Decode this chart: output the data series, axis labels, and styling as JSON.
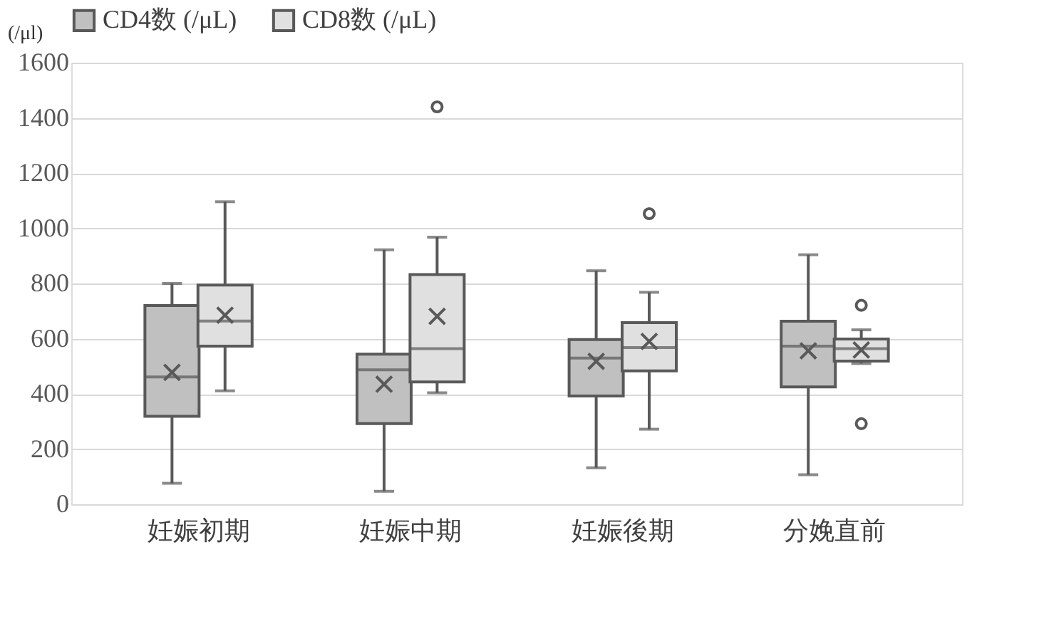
{
  "chart_data": {
    "type": "box",
    "categories": [
      "妊娠初期",
      "妊娠中期",
      "妊娠後期",
      "分娩直前"
    ],
    "ylabel": "(/μl)",
    "ylim": [
      0,
      1600
    ],
    "yticks": [
      0,
      200,
      400,
      600,
      800,
      1000,
      1200,
      1400,
      1600
    ],
    "grid": "y",
    "legend": "top",
    "series": [
      {
        "name": "CD4数 (/μL)",
        "color": "#c0c0c0",
        "boxes": [
          {
            "low": 76,
            "q1": 319,
            "median": 461,
            "q3": 720,
            "high": 800,
            "mean": 478
          },
          {
            "low": 47,
            "q1": 292,
            "median": 487,
            "q3": 544,
            "high": 922,
            "mean": 435
          },
          {
            "low": 132,
            "q1": 392,
            "median": 530,
            "q3": 597,
            "high": 846,
            "mean": 518
          },
          {
            "low": 107,
            "q1": 425,
            "median": 573,
            "q3": 663,
            "high": 904,
            "mean": 556
          }
        ]
      },
      {
        "name": "CD8数 (/μL)",
        "color": "#e0e0e0",
        "boxes": [
          {
            "low": 411,
            "q1": 573,
            "median": 664,
            "q3": 794,
            "high": 1096,
            "mean": 685
          },
          {
            "low": 404,
            "q1": 443,
            "median": 564,
            "q3": 832,
            "high": 968,
            "mean": 681,
            "outliers": [
              1440
            ]
          },
          {
            "low": 272,
            "q1": 483,
            "median": 568,
            "q3": 658,
            "high": 768,
            "mean": 590,
            "outliers": [
              1053
            ]
          },
          {
            "low": 510,
            "q1": 519,
            "median": 564,
            "q3": 599,
            "high": 632,
            "mean": 559,
            "outliers": [
              721,
              292
            ]
          }
        ]
      }
    ]
  }
}
